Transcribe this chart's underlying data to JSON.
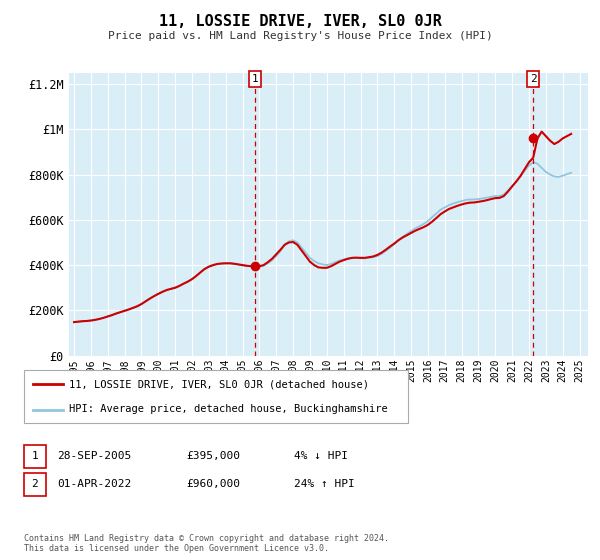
{
  "title": "11, LOSSIE DRIVE, IVER, SL0 0JR",
  "subtitle": "Price paid vs. HM Land Registry's House Price Index (HPI)",
  "ylim": [
    0,
    1250000
  ],
  "xlim_start": 1994.7,
  "xlim_end": 2025.5,
  "yticks": [
    0,
    200000,
    400000,
    600000,
    800000,
    1000000,
    1200000
  ],
  "ytick_labels": [
    "£0",
    "£200K",
    "£400K",
    "£600K",
    "£800K",
    "£1M",
    "£1.2M"
  ],
  "xticks": [
    1995,
    1996,
    1997,
    1998,
    1999,
    2000,
    2001,
    2002,
    2003,
    2004,
    2005,
    2006,
    2007,
    2008,
    2009,
    2010,
    2011,
    2012,
    2013,
    2014,
    2015,
    2016,
    2017,
    2018,
    2019,
    2020,
    2021,
    2022,
    2023,
    2024,
    2025
  ],
  "bg_color": "#daeef7",
  "grid_color": "#ffffff",
  "hpi_color": "#92c5de",
  "price_color": "#cc0000",
  "marker1_x": 2005.75,
  "marker1_y": 395000,
  "marker2_x": 2022.25,
  "marker2_y": 960000,
  "vline1_x": 2005.75,
  "vline2_x": 2022.25,
  "legend_label1": "11, LOSSIE DRIVE, IVER, SL0 0JR (detached house)",
  "legend_label2": "HPI: Average price, detached house, Buckinghamshire",
  "table_row1_num": "1",
  "table_row1_date": "28-SEP-2005",
  "table_row1_price": "£395,000",
  "table_row1_hpi": "4% ↓ HPI",
  "table_row2_num": "2",
  "table_row2_date": "01-APR-2022",
  "table_row2_price": "£960,000",
  "table_row2_hpi": "24% ↑ HPI",
  "footer": "Contains HM Land Registry data © Crown copyright and database right 2024.\nThis data is licensed under the Open Government Licence v3.0.",
  "hpi_x": [
    1995.0,
    1995.25,
    1995.5,
    1995.75,
    1996.0,
    1996.25,
    1996.5,
    1996.75,
    1997.0,
    1997.25,
    1997.5,
    1997.75,
    1998.0,
    1998.25,
    1998.5,
    1998.75,
    1999.0,
    1999.25,
    1999.5,
    1999.75,
    2000.0,
    2000.25,
    2000.5,
    2000.75,
    2001.0,
    2001.25,
    2001.5,
    2001.75,
    2002.0,
    2002.25,
    2002.5,
    2002.75,
    2003.0,
    2003.25,
    2003.5,
    2003.75,
    2004.0,
    2004.25,
    2004.5,
    2004.75,
    2005.0,
    2005.25,
    2005.5,
    2005.75,
    2006.0,
    2006.25,
    2006.5,
    2006.75,
    2007.0,
    2007.25,
    2007.5,
    2007.75,
    2008.0,
    2008.25,
    2008.5,
    2008.75,
    2009.0,
    2009.25,
    2009.5,
    2009.75,
    2010.0,
    2010.25,
    2010.5,
    2010.75,
    2011.0,
    2011.25,
    2011.5,
    2011.75,
    2012.0,
    2012.25,
    2012.5,
    2012.75,
    2013.0,
    2013.25,
    2013.5,
    2013.75,
    2014.0,
    2014.25,
    2014.5,
    2014.75,
    2015.0,
    2015.25,
    2015.5,
    2015.75,
    2016.0,
    2016.25,
    2016.5,
    2016.75,
    2017.0,
    2017.25,
    2017.5,
    2017.75,
    2018.0,
    2018.25,
    2018.5,
    2018.75,
    2019.0,
    2019.25,
    2019.5,
    2019.75,
    2020.0,
    2020.25,
    2020.5,
    2020.75,
    2021.0,
    2021.25,
    2021.5,
    2021.75,
    2022.0,
    2022.25,
    2022.5,
    2022.75,
    2023.0,
    2023.25,
    2023.5,
    2023.75,
    2024.0,
    2024.25,
    2024.5
  ],
  "hpi_y": [
    148000,
    150000,
    152000,
    153000,
    155000,
    158000,
    162000,
    167000,
    173000,
    179000,
    186000,
    192000,
    198000,
    204000,
    211000,
    218000,
    228000,
    240000,
    252000,
    263000,
    273000,
    282000,
    290000,
    295000,
    300000,
    308000,
    318000,
    327000,
    338000,
    352000,
    368000,
    383000,
    393000,
    400000,
    405000,
    407000,
    408000,
    408000,
    406000,
    403000,
    400000,
    397000,
    395000,
    393000,
    393000,
    398000,
    408000,
    422000,
    440000,
    462000,
    490000,
    505000,
    510000,
    500000,
    478000,
    455000,
    432000,
    418000,
    408000,
    403000,
    400000,
    405000,
    413000,
    420000,
    425000,
    430000,
    432000,
    432000,
    430000,
    430000,
    432000,
    435000,
    440000,
    450000,
    463000,
    477000,
    493000,
    510000,
    525000,
    538000,
    550000,
    562000,
    572000,
    582000,
    595000,
    612000,
    628000,
    645000,
    655000,
    665000,
    672000,
    678000,
    683000,
    688000,
    690000,
    690000,
    692000,
    695000,
    698000,
    702000,
    705000,
    705000,
    712000,
    730000,
    750000,
    770000,
    792000,
    818000,
    840000,
    855000,
    848000,
    830000,
    812000,
    800000,
    792000,
    790000,
    795000,
    802000,
    808000
  ],
  "price_x": [
    1995.0,
    1995.25,
    1995.5,
    1995.75,
    1996.0,
    1996.25,
    1996.5,
    1996.75,
    1997.0,
    1997.25,
    1997.5,
    1997.75,
    1998.0,
    1998.25,
    1998.5,
    1998.75,
    1999.0,
    1999.25,
    1999.5,
    1999.75,
    2000.0,
    2000.25,
    2000.5,
    2000.75,
    2001.0,
    2001.25,
    2001.5,
    2001.75,
    2002.0,
    2002.25,
    2002.5,
    2002.75,
    2003.0,
    2003.25,
    2003.5,
    2003.75,
    2004.0,
    2004.25,
    2004.5,
    2004.75,
    2005.0,
    2005.25,
    2005.5,
    2005.75,
    2006.0,
    2006.25,
    2006.5,
    2006.75,
    2007.0,
    2007.25,
    2007.5,
    2007.75,
    2008.0,
    2008.25,
    2008.5,
    2008.75,
    2009.0,
    2009.25,
    2009.5,
    2009.75,
    2010.0,
    2010.25,
    2010.5,
    2010.75,
    2011.0,
    2011.25,
    2011.5,
    2011.75,
    2012.0,
    2012.25,
    2012.5,
    2012.75,
    2013.0,
    2013.25,
    2013.5,
    2013.75,
    2014.0,
    2014.25,
    2014.5,
    2014.75,
    2015.0,
    2015.25,
    2015.5,
    2015.75,
    2016.0,
    2016.25,
    2016.5,
    2016.75,
    2017.0,
    2017.25,
    2017.5,
    2017.75,
    2018.0,
    2018.25,
    2018.5,
    2018.75,
    2019.0,
    2019.25,
    2019.5,
    2019.75,
    2020.0,
    2020.25,
    2020.5,
    2020.75,
    2021.0,
    2021.25,
    2021.5,
    2021.75,
    2022.0,
    2022.25,
    2022.5,
    2022.75,
    2023.0,
    2023.25,
    2023.5,
    2023.75,
    2024.0,
    2024.25,
    2024.5
  ],
  "price_y": [
    148000,
    150000,
    152000,
    153000,
    155000,
    158000,
    162000,
    167000,
    173000,
    179000,
    186000,
    192000,
    198000,
    204000,
    211000,
    218000,
    228000,
    240000,
    252000,
    263000,
    273000,
    282000,
    290000,
    295000,
    300000,
    308000,
    318000,
    327000,
    338000,
    352000,
    368000,
    383000,
    393000,
    400000,
    405000,
    407000,
    408000,
    408000,
    406000,
    403000,
    400000,
    397000,
    395000,
    395000,
    395000,
    400000,
    413000,
    428000,
    448000,
    468000,
    490000,
    500000,
    502000,
    490000,
    465000,
    440000,
    415000,
    400000,
    390000,
    388000,
    388000,
    395000,
    405000,
    415000,
    422000,
    428000,
    432000,
    433000,
    432000,
    432000,
    435000,
    438000,
    445000,
    455000,
    468000,
    482000,
    495000,
    510000,
    522000,
    532000,
    542000,
    552000,
    560000,
    568000,
    578000,
    592000,
    608000,
    625000,
    637000,
    648000,
    655000,
    662000,
    668000,
    673000,
    676000,
    677000,
    680000,
    683000,
    687000,
    692000,
    696000,
    697000,
    705000,
    725000,
    748000,
    770000,
    795000,
    825000,
    855000,
    875000,
    960000,
    990000,
    970000,
    950000,
    935000,
    945000,
    960000,
    970000,
    980000
  ]
}
